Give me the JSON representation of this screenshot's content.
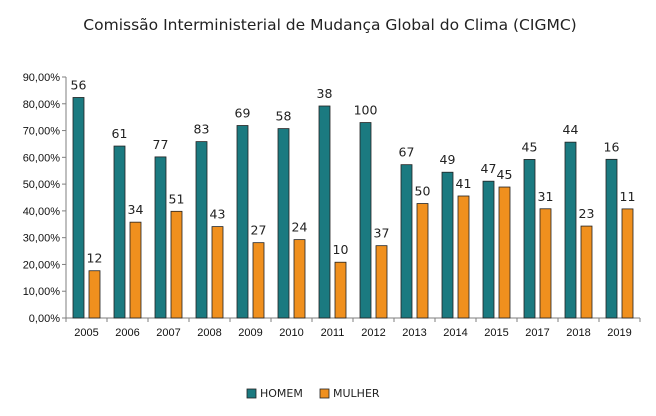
{
  "chart_data": {
    "type": "bar",
    "title": "Comissão Interministerial de Mudança Global do Clima (CIGMC)",
    "xlabel": "",
    "ylabel": "",
    "categories": [
      "2005",
      "2006",
      "2007",
      "2008",
      "2009",
      "2010",
      "2011",
      "2012",
      "2013",
      "2014",
      "2015",
      "2017",
      "2018",
      "2019"
    ],
    "ylim": [
      0,
      90
    ],
    "yticks": [
      "0,00%",
      "10,00%",
      "20,00%",
      "30,00%",
      "40,00%",
      "50,00%",
      "60,00%",
      "70,00%",
      "80,00%",
      "90,00%"
    ],
    "grid": false,
    "legend": "bottom",
    "series": [
      {
        "name": "HOMEM",
        "color": "#1b7a80",
        "values": [
          82.35,
          64.21,
          60.16,
          65.87,
          71.88,
          70.73,
          79.17,
          72.99,
          57.26,
          54.44,
          51.09,
          59.21,
          65.67,
          59.26
        ],
        "labels": [
          "56",
          "61",
          "77",
          "83",
          "69",
          "58",
          "38",
          "100",
          "67",
          "49",
          "47",
          "45",
          "44",
          "16"
        ]
      },
      {
        "name": "MULHER",
        "color": "#f0901e",
        "values": [
          17.65,
          35.79,
          39.84,
          34.13,
          28.13,
          29.27,
          20.83,
          27.01,
          42.74,
          45.56,
          48.91,
          40.79,
          34.33,
          40.74
        ],
        "labels": [
          "12",
          "34",
          "51",
          "43",
          "27",
          "24",
          "10",
          "37",
          "50",
          "41",
          "45",
          "31",
          "23",
          "11"
        ]
      }
    ]
  }
}
